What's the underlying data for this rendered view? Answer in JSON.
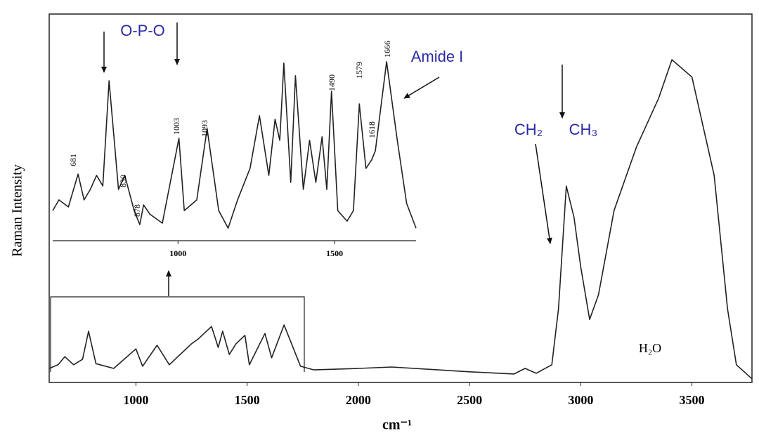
{
  "chart_data": [
    {
      "type": "line",
      "x_label": "cm⁻¹",
      "y_label": "Raman Intensity",
      "color": "#222222",
      "xlim": [
        610,
        3770
      ],
      "ylim": [
        0,
        100
      ],
      "xticks": [
        1000,
        1500,
        2000,
        2500,
        3000,
        3500
      ],
      "x": [
        610,
        650,
        680,
        720,
        760,
        787,
        820,
        900,
        1000,
        1030,
        1095,
        1150,
        1250,
        1280,
        1340,
        1370,
        1390,
        1420,
        1450,
        1490,
        1510,
        1580,
        1610,
        1666,
        1700,
        1740,
        1800,
        2000,
        2150,
        2500,
        2700,
        2750,
        2800,
        2870,
        2900,
        2935,
        2970,
        3000,
        3040,
        3080,
        3150,
        3250,
        3350,
        3410,
        3500,
        3600,
        3660,
        3700,
        3770
      ],
      "values": [
        3.8,
        4.8,
        7.0,
        4.8,
        6.3,
        13.9,
        5.1,
        3.8,
        9.1,
        4.4,
        10.1,
        4.8,
        10.5,
        11.8,
        15.2,
        9.5,
        13.9,
        7.6,
        10.5,
        12.8,
        4.8,
        13.3,
        6.7,
        15.6,
        10.5,
        4.4,
        3.4,
        3.8,
        4.2,
        2.9,
        2.3,
        3.8,
        2.5,
        4.8,
        20.0,
        53.3,
        44.8,
        31.4,
        17.1,
        23.8,
        46.7,
        63.8,
        77.1,
        87.6,
        82.9,
        56.2,
        20.0,
        4.8,
        1.0
      ],
      "annotations": [
        "CH₂",
        "CH₃",
        "H₂O"
      ]
    },
    {
      "type": "line",
      "color": "#222222",
      "xlim": [
        600,
        1760
      ],
      "ylim": [
        0,
        100
      ],
      "xticks": [
        1000,
        1500
      ],
      "x": [
        600,
        620,
        650,
        681,
        700,
        720,
        740,
        760,
        780,
        810,
        830,
        860,
        878,
        890,
        910,
        950,
        1003,
        1020,
        1060,
        1093,
        1130,
        1160,
        1190,
        1230,
        1260,
        1290,
        1310,
        1325,
        1338,
        1360,
        1375,
        1400,
        1420,
        1440,
        1460,
        1475,
        1490,
        1510,
        1540,
        1560,
        1579,
        1600,
        1618,
        1630,
        1666,
        1700,
        1730,
        1760
      ],
      "values": [
        16.3,
        22.1,
        18.3,
        36.1,
        22.1,
        27.8,
        35.4,
        29.7,
        86.7,
        27.8,
        35.4,
        16.3,
        8.7,
        19.4,
        14.4,
        9.5,
        55.5,
        16.3,
        22.1,
        60.8,
        16.3,
        6.8,
        22.1,
        39.2,
        67.7,
        35.4,
        65.8,
        54.4,
        96.2,
        31.6,
        89.4,
        27.8,
        54.4,
        31.6,
        56.3,
        27.8,
        81.0,
        16.3,
        10.6,
        16.3,
        74.1,
        39.2,
        43.7,
        48.7,
        97.0,
        54.4,
        20.2,
        6.8
      ],
      "annotations": [
        "O-P-O",
        "Amide I",
        "681",
        "830",
        "878",
        "1003",
        "1093",
        "1490",
        "1579",
        "1618",
        "1666"
      ]
    }
  ]
}
